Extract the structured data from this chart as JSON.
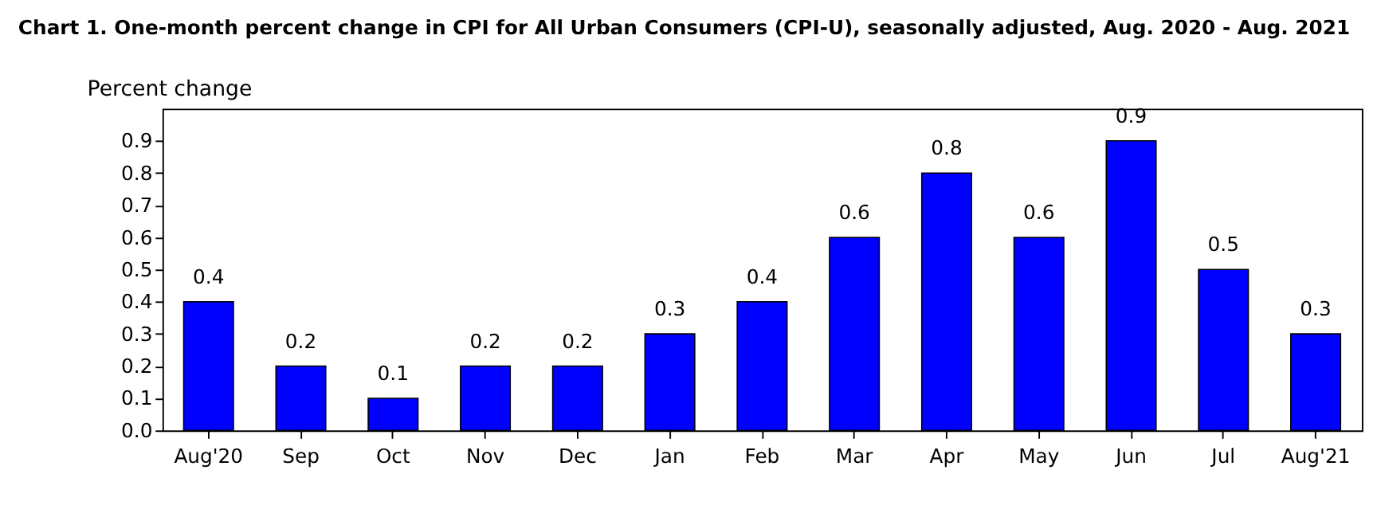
{
  "chart_data": {
    "type": "bar",
    "title": "Chart 1. One-month percent change in CPI for All Urban Consumers (CPI-U), seasonally adjusted, Aug. 2020 - Aug. 2021",
    "ylabel": "Percent change",
    "categories": [
      "Aug'20",
      "Sep",
      "Oct",
      "Nov",
      "Dec",
      "Jan",
      "Feb",
      "Mar",
      "Apr",
      "May",
      "Jun",
      "Jul",
      "Aug'21"
    ],
    "values": [
      0.4,
      0.2,
      0.1,
      0.2,
      0.2,
      0.3,
      0.4,
      0.6,
      0.8,
      0.6,
      0.9,
      0.5,
      0.3
    ],
    "color": "#0000ff",
    "ylim": [
      0,
      1.0
    ],
    "yticks": [
      {
        "value": 0,
        "label": "0.0"
      },
      0.1,
      0.2,
      0.3,
      0.4,
      0.5,
      0.6,
      0.7,
      0.8,
      0.9
    ],
    "data_labels": true,
    "grid": false
  }
}
